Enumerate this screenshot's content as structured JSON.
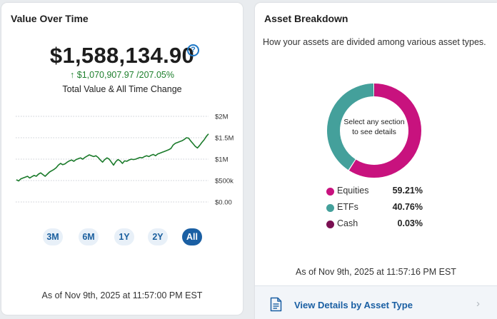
{
  "value_card": {
    "title": "Value Over Time",
    "total_value": "$1,588,134.90",
    "help_symbol": "?",
    "change_arrow": "↑",
    "change_text": "$1,070,907.97 /207.05%",
    "caption": "Total Value & All Time Change",
    "periods": [
      {
        "label": "3M",
        "active": false
      },
      {
        "label": "6M",
        "active": false
      },
      {
        "label": "1Y",
        "active": false
      },
      {
        "label": "2Y",
        "active": false
      },
      {
        "label": "All",
        "active": true
      }
    ],
    "as_of": "As of Nov 9th, 2025 at 11:57:00 PM EST"
  },
  "chart_data": {
    "type": "line",
    "yticks": [
      "$2M",
      "$1.5M",
      "$1M",
      "$500k",
      "$0.00"
    ],
    "ylim": [
      0,
      2000000
    ],
    "line_color": "#1a7a2a",
    "series": [
      {
        "values": [
          520000,
          490000,
          540000,
          560000,
          580000,
          600000,
          560000,
          590000,
          620000,
          600000,
          650000,
          680000,
          640000,
          600000,
          650000,
          700000,
          730000,
          760000,
          800000,
          860000,
          900000,
          870000,
          890000,
          930000,
          960000,
          980000,
          950000,
          990000,
          1010000,
          1030000,
          1000000,
          1040000,
          1070000,
          1100000,
          1080000,
          1060000,
          1080000,
          1040000,
          980000,
          930000,
          990000,
          1030000,
          1000000,
          930000,
          860000,
          940000,
          990000,
          960000,
          900000,
          960000,
          950000,
          980000,
          1000000,
          990000,
          1000000,
          1020000,
          1040000,
          1030000,
          1060000,
          1080000,
          1060000,
          1090000,
          1110000,
          1080000,
          1120000,
          1140000,
          1160000,
          1180000,
          1200000,
          1220000,
          1250000,
          1330000,
          1370000,
          1390000,
          1410000,
          1430000,
          1460000,
          1500000,
          1490000,
          1420000,
          1360000,
          1300000,
          1260000,
          1320000,
          1390000,
          1450000,
          1530000,
          1590000
        ]
      }
    ]
  },
  "breakdown_card": {
    "title": "Asset Breakdown",
    "subtitle": "How your assets are divided among various asset types.",
    "donut_prompt": "Select any section to see details",
    "assets": [
      {
        "label": "Equities",
        "pct": "59.21%",
        "value": 59.21,
        "color": "#c8127e"
      },
      {
        "label": "ETFs",
        "pct": "40.76%",
        "value": 40.76,
        "color": "#44a09b"
      },
      {
        "label": "Cash",
        "pct": "0.03%",
        "value": 0.03,
        "color": "#7a1052"
      }
    ],
    "as_of": "As of Nov 9th, 2025 at 11:57:16 PM EST",
    "footer_label": "View Details by Asset Type",
    "footer_chevron": "›"
  }
}
